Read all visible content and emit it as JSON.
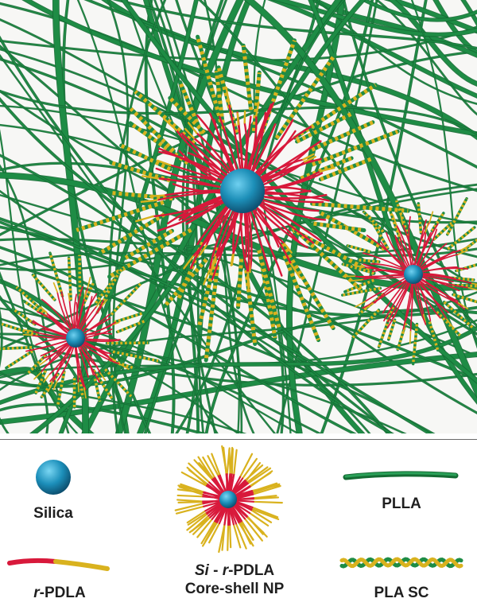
{
  "colors": {
    "plla": "#1e8c45",
    "plla_dark": "#146b33",
    "pdla_red": "#d8193b",
    "pdla_yellow": "#d9b21e",
    "silica": "#1d8fb8",
    "background": "#f7f7f5"
  },
  "scene": {
    "description_icons": [
      "plla-fiber-network",
      "core-shell-nanoparticle",
      "stereocomplex-crystal"
    ]
  },
  "legend": {
    "silica": {
      "label": "Silica"
    },
    "core_shell": {
      "label_prefix": "Si",
      "label_dash1": " - ",
      "label_r": "r",
      "label_suffix": "-PDLA",
      "label_line2": "Core-shell NP"
    },
    "plla": {
      "label": "PLLA"
    },
    "r_pdla": {
      "label_r": "r",
      "label_suffix": "-PDLA"
    },
    "pla_sc": {
      "label": "PLA SC"
    }
  }
}
